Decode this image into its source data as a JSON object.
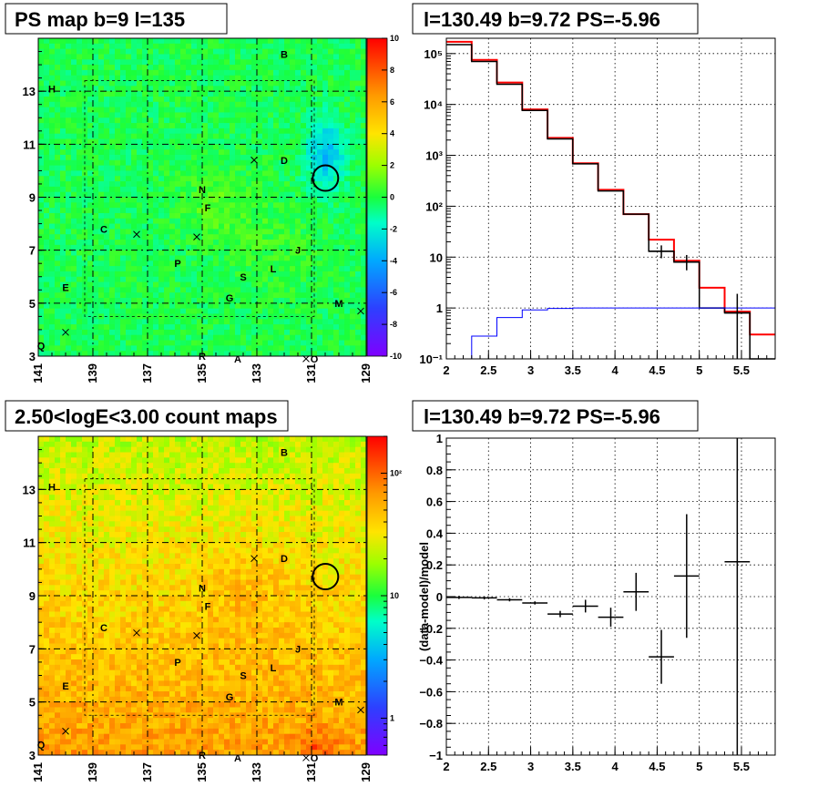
{
  "panels": {
    "ps_map": {
      "title": "PS map b=9 l=135",
      "colorbar_ticks": [
        "10",
        "8",
        "6",
        "4",
        "2",
        "0",
        "-2",
        "-4",
        "-6",
        "-8",
        "-10"
      ]
    },
    "count_map": {
      "title": "2.50<logE<3.00 count maps",
      "colorbar_ticks": [
        "10²",
        "10",
        "1"
      ]
    },
    "spectrum": {
      "title": "l=130.49 b=9.72 PS=-5.96"
    },
    "residual": {
      "title": "l=130.49 b=9.72 PS=-5.96",
      "ylabel": "(data-model)/model"
    }
  },
  "map_axes": {
    "x_ticks": [
      "141",
      "139",
      "137",
      "135",
      "133",
      "131",
      "129"
    ],
    "y_ticks": [
      "13",
      "11",
      "9",
      "7",
      "5",
      "3"
    ]
  },
  "source_labels": [
    {
      "t": "B",
      "l": 132.0,
      "b": 14.4
    },
    {
      "t": "H",
      "l": 140.5,
      "b": 13.1
    },
    {
      "t": "D",
      "l": 132.0,
      "b": 10.4
    },
    {
      "t": "N",
      "l": 135.0,
      "b": 9.3
    },
    {
      "t": "F",
      "l": 134.8,
      "b": 8.6
    },
    {
      "t": "C",
      "l": 138.6,
      "b": 7.8
    },
    {
      "t": "J",
      "l": 131.5,
      "b": 7.0
    },
    {
      "t": "P",
      "l": 135.9,
      "b": 6.5
    },
    {
      "t": "L",
      "l": 132.4,
      "b": 6.3
    },
    {
      "t": "S",
      "l": 133.5,
      "b": 6.0
    },
    {
      "t": "E",
      "l": 140.0,
      "b": 5.6
    },
    {
      "t": "G",
      "l": 134.0,
      "b": 5.2
    },
    {
      "t": "M",
      "l": 130.0,
      "b": 5.0
    },
    {
      "t": "Q",
      "l": 140.9,
      "b": 3.4
    },
    {
      "t": "R",
      "l": 135.0,
      "b": 3.0
    },
    {
      "t": "A",
      "l": 133.7,
      "b": 2.9
    },
    {
      "t": "O",
      "l": 130.9,
      "b": 2.9
    }
  ],
  "map_crosses": [
    {
      "l": 133.1,
      "b": 10.4
    },
    {
      "l": 137.4,
      "b": 7.6
    },
    {
      "l": 135.2,
      "b": 7.5
    },
    {
      "l": 140.0,
      "b": 3.9
    },
    {
      "l": 129.2,
      "b": 4.7
    },
    {
      "l": 131.2,
      "b": 2.9
    }
  ],
  "map_circle": {
    "l": 130.49,
    "b": 9.72
  },
  "spectrum_axes": {
    "x_ticks": [
      "2",
      "2.5",
      "3",
      "3.5",
      "4",
      "4.5",
      "5",
      "5.5"
    ],
    "y_ticks": [
      "10⁵",
      "10⁴",
      "10³",
      "10²",
      "10",
      "1",
      "10⁻¹"
    ]
  },
  "residual_axes": {
    "x_ticks": [
      "2",
      "2.5",
      "3",
      "3.5",
      "4",
      "4.5",
      "5",
      "5.5"
    ],
    "y_ticks": [
      "1",
      "0.8",
      "0.6",
      "0.4",
      "0.2",
      "0",
      "−0.2",
      "−0.4",
      "−0.6",
      "−0.8",
      "−1"
    ]
  },
  "chart_data": [
    {
      "type": "heatmap",
      "title": "PS map b=9 l=135",
      "xlim": [
        141,
        129
      ],
      "ylim": [
        3,
        15
      ],
      "zlim": [
        -10,
        10
      ],
      "colorbar_ticks": [
        10,
        8,
        6,
        4,
        2,
        0,
        -2,
        -4,
        -6,
        -8,
        -10
      ]
    },
    {
      "type": "line",
      "title": "l=130.49 b=9.72 PS=-5.96",
      "yscale": "log",
      "xlim": [
        2.0,
        5.9
      ],
      "ylim": [
        0.1,
        200000
      ],
      "grid": true,
      "bin_edges": [
        2.0,
        2.3,
        2.6,
        2.9,
        3.2,
        3.5,
        3.8,
        4.1,
        4.4,
        4.7,
        5.0,
        5.3,
        5.6,
        5.9
      ],
      "series": [
        {
          "color": "#ff0000",
          "values": [
            170000,
            75000,
            27000,
            8000,
            2200,
            700,
            210,
            70,
            22,
            8.5,
            2.5,
            0.85,
            0.3
          ]
        },
        {
          "color": "#000000",
          "values": [
            150000,
            70000,
            25000,
            7600,
            2100,
            680,
            200,
            70,
            13,
            8,
            1,
            0.8,
            0.1
          ]
        },
        {
          "color": "#0000ff",
          "values": [
            0.1,
            0.28,
            0.65,
            0.92,
            0.98,
            1.0,
            1.0,
            1.0,
            1.0,
            1.0,
            1.0,
            1.0,
            1.0
          ]
        }
      ],
      "errorbars": [
        {
          "x": 4.55,
          "y": 13,
          "xerr": 0.15,
          "ylo": 9.5,
          "yhi": 17
        },
        {
          "x": 4.85,
          "y": 8,
          "xerr": 0.15,
          "ylo": 5.5,
          "yhi": 11
        },
        {
          "x": 5.45,
          "y": 0.8,
          "xerr": 0.15,
          "ylo": 0.1,
          "yhi": 1.9
        }
      ]
    },
    {
      "type": "heatmap",
      "title": "2.50<logE<3.00 count maps",
      "xlim": [
        141,
        129
      ],
      "ylim": [
        3,
        15
      ],
      "zscale": "log",
      "zlim": [
        0.5,
        200
      ],
      "colorbar_ticks": [
        100,
        10,
        1
      ]
    },
    {
      "type": "scatter",
      "title": "l=130.49 b=9.72 PS=-5.96",
      "ylabel": "(data-model)/model",
      "xlim": [
        2.0,
        5.9
      ],
      "ylim": [
        -1,
        1
      ],
      "grid": true,
      "points": [
        {
          "x": 2.15,
          "y": -0.005,
          "xerr": 0.15,
          "yerr": 0.01
        },
        {
          "x": 2.45,
          "y": -0.008,
          "xerr": 0.15,
          "yerr": 0.01
        },
        {
          "x": 2.75,
          "y": -0.02,
          "xerr": 0.15,
          "yerr": 0.01
        },
        {
          "x": 3.05,
          "y": -0.04,
          "xerr": 0.15,
          "yerr": 0.01
        },
        {
          "x": 3.35,
          "y": -0.11,
          "xerr": 0.15,
          "yerr": 0.02
        },
        {
          "x": 3.65,
          "y": -0.06,
          "xerr": 0.15,
          "yerr": 0.04
        },
        {
          "x": 3.95,
          "y": -0.13,
          "xerr": 0.15,
          "yerr": 0.06
        },
        {
          "x": 4.25,
          "y": 0.03,
          "xerr": 0.15,
          "yerr": 0.12
        },
        {
          "x": 4.55,
          "y": -0.38,
          "xerr": 0.15,
          "yerr": 0.17
        },
        {
          "x": 4.85,
          "y": 0.13,
          "xerr": 0.15,
          "yerr": 0.39
        },
        {
          "x": 5.45,
          "y": 0.22,
          "xerr": 0.15,
          "yerr": 1.5
        }
      ]
    }
  ]
}
